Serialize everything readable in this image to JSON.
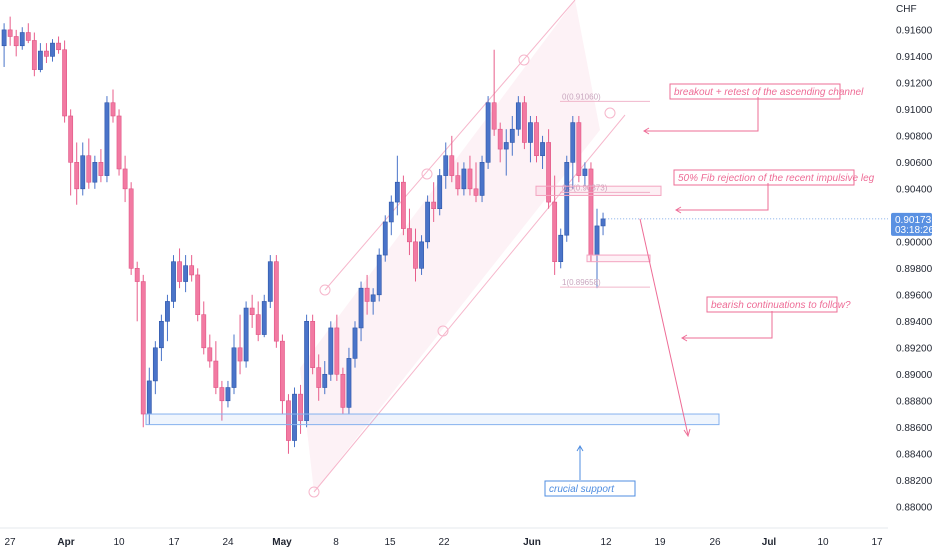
{
  "colors": {
    "bull": "#4a74c9",
    "bear": "#f27aa2",
    "wick_bull": "#4a74c9",
    "wick_bear": "#e85d8a",
    "annotation_pink": "#ee6c96",
    "annotation_blue": "#4f8de0",
    "channel": "#f6b6cb",
    "channel_fill": "#fdf2f6",
    "price_tag": "#5a91e2"
  },
  "axis": {
    "currency": "CHF",
    "price_ticks": [
      "0.91600",
      "0.91400",
      "0.91200",
      "0.91000",
      "0.90800",
      "0.90600",
      "0.90400",
      "0.90000",
      "0.89800",
      "0.89600",
      "0.89400",
      "0.89200",
      "0.89000",
      "0.88800",
      "0.88600",
      "0.88400",
      "0.88200",
      "0.88000"
    ],
    "time_ticks": [
      {
        "label": "27",
        "bold": false
      },
      {
        "label": "Apr",
        "bold": true
      },
      {
        "label": "10",
        "bold": false
      },
      {
        "label": "17",
        "bold": false
      },
      {
        "label": "24",
        "bold": false
      },
      {
        "label": "May",
        "bold": true
      },
      {
        "label": "8",
        "bold": false
      },
      {
        "label": "15",
        "bold": false
      },
      {
        "label": "22",
        "bold": false
      },
      {
        "label": "Jun",
        "bold": true
      },
      {
        "label": "12",
        "bold": false
      },
      {
        "label": "19",
        "bold": false
      },
      {
        "label": "26",
        "bold": false
      },
      {
        "label": "Jul",
        "bold": true
      },
      {
        "label": "10",
        "bold": false
      },
      {
        "label": "17",
        "bold": false
      }
    ]
  },
  "price_tag": {
    "price": "0.90173",
    "countdown": "03:18:26"
  },
  "annotations": {
    "breakout": "breakout + retest of the ascending channel",
    "fib_rejection": "50% Fib rejection of the recent impulsive leg",
    "bearish": "bearish continuations to follow?",
    "support": "crucial support"
  },
  "fib_levels": [
    {
      "label": "0(0.91060)",
      "price": 0.9106
    },
    {
      "label": "0.5(0.90373)",
      "price": 0.90373
    },
    {
      "label": "1(0.89658)",
      "price": 0.89658
    }
  ],
  "chart_data": {
    "type": "candlestick",
    "symbol_currency": "CHF",
    "ylim": [
      0.879,
      0.9175
    ],
    "last_price": 0.90173,
    "support_zone": [
      0.8862,
      0.887
    ],
    "candles": [
      {
        "o": 0.9148,
        "h": 0.9165,
        "l": 0.9132,
        "c": 0.916
      },
      {
        "o": 0.916,
        "h": 0.917,
        "l": 0.9148,
        "c": 0.9155
      },
      {
        "o": 0.9155,
        "h": 0.916,
        "l": 0.914,
        "c": 0.9148
      },
      {
        "o": 0.9148,
        "h": 0.9162,
        "l": 0.9145,
        "c": 0.9158
      },
      {
        "o": 0.9158,
        "h": 0.9165,
        "l": 0.915,
        "c": 0.9152
      },
      {
        "o": 0.9152,
        "h": 0.9158,
        "l": 0.9125,
        "c": 0.913
      },
      {
        "o": 0.913,
        "h": 0.915,
        "l": 0.9128,
        "c": 0.9144
      },
      {
        "o": 0.9144,
        "h": 0.915,
        "l": 0.9135,
        "c": 0.914
      },
      {
        "o": 0.914,
        "h": 0.9153,
        "l": 0.9136,
        "c": 0.915
      },
      {
        "o": 0.915,
        "h": 0.9155,
        "l": 0.9142,
        "c": 0.9145
      },
      {
        "o": 0.9145,
        "h": 0.9152,
        "l": 0.909,
        "c": 0.9095
      },
      {
        "o": 0.9095,
        "h": 0.91,
        "l": 0.9035,
        "c": 0.906
      },
      {
        "o": 0.906,
        "h": 0.9075,
        "l": 0.9028,
        "c": 0.904
      },
      {
        "o": 0.904,
        "h": 0.9075,
        "l": 0.9035,
        "c": 0.9065
      },
      {
        "o": 0.9065,
        "h": 0.9078,
        "l": 0.904,
        "c": 0.9045
      },
      {
        "o": 0.9045,
        "h": 0.9065,
        "l": 0.904,
        "c": 0.906
      },
      {
        "o": 0.906,
        "h": 0.907,
        "l": 0.9045,
        "c": 0.905
      },
      {
        "o": 0.905,
        "h": 0.911,
        "l": 0.9045,
        "c": 0.9105
      },
      {
        "o": 0.9105,
        "h": 0.9115,
        "l": 0.909,
        "c": 0.9095
      },
      {
        "o": 0.9095,
        "h": 0.91,
        "l": 0.905,
        "c": 0.9055
      },
      {
        "o": 0.9055,
        "h": 0.9065,
        "l": 0.903,
        "c": 0.904
      },
      {
        "o": 0.904,
        "h": 0.9045,
        "l": 0.8975,
        "c": 0.898
      },
      {
        "o": 0.898,
        "h": 0.8985,
        "l": 0.894,
        "c": 0.897
      },
      {
        "o": 0.897,
        "h": 0.8975,
        "l": 0.886,
        "c": 0.887
      },
      {
        "o": 0.887,
        "h": 0.8905,
        "l": 0.8862,
        "c": 0.8895
      },
      {
        "o": 0.8895,
        "h": 0.8925,
        "l": 0.8885,
        "c": 0.892
      },
      {
        "o": 0.892,
        "h": 0.8945,
        "l": 0.891,
        "c": 0.894
      },
      {
        "o": 0.894,
        "h": 0.896,
        "l": 0.8925,
        "c": 0.8955
      },
      {
        "o": 0.8955,
        "h": 0.899,
        "l": 0.895,
        "c": 0.8985
      },
      {
        "o": 0.8985,
        "h": 0.8995,
        "l": 0.8965,
        "c": 0.897
      },
      {
        "o": 0.897,
        "h": 0.899,
        "l": 0.8962,
        "c": 0.8982
      },
      {
        "o": 0.8982,
        "h": 0.899,
        "l": 0.897,
        "c": 0.8975
      },
      {
        "o": 0.8975,
        "h": 0.898,
        "l": 0.894,
        "c": 0.8945
      },
      {
        "o": 0.8945,
        "h": 0.8955,
        "l": 0.8915,
        "c": 0.892
      },
      {
        "o": 0.892,
        "h": 0.893,
        "l": 0.8905,
        "c": 0.891
      },
      {
        "o": 0.891,
        "h": 0.8925,
        "l": 0.8885,
        "c": 0.889
      },
      {
        "o": 0.889,
        "h": 0.8895,
        "l": 0.8865,
        "c": 0.888
      },
      {
        "o": 0.888,
        "h": 0.8895,
        "l": 0.8875,
        "c": 0.889
      },
      {
        "o": 0.889,
        "h": 0.893,
        "l": 0.8885,
        "c": 0.892
      },
      {
        "o": 0.892,
        "h": 0.8945,
        "l": 0.89,
        "c": 0.891
      },
      {
        "o": 0.891,
        "h": 0.8955,
        "l": 0.8905,
        "c": 0.895
      },
      {
        "o": 0.895,
        "h": 0.896,
        "l": 0.8935,
        "c": 0.8945
      },
      {
        "o": 0.8945,
        "h": 0.8955,
        "l": 0.8925,
        "c": 0.893
      },
      {
        "o": 0.893,
        "h": 0.896,
        "l": 0.8928,
        "c": 0.8955
      },
      {
        "o": 0.8955,
        "h": 0.899,
        "l": 0.895,
        "c": 0.8985
      },
      {
        "o": 0.8985,
        "h": 0.899,
        "l": 0.892,
        "c": 0.8925
      },
      {
        "o": 0.8925,
        "h": 0.893,
        "l": 0.887,
        "c": 0.888
      },
      {
        "o": 0.888,
        "h": 0.8885,
        "l": 0.884,
        "c": 0.885
      },
      {
        "o": 0.885,
        "h": 0.889,
        "l": 0.8845,
        "c": 0.8885
      },
      {
        "o": 0.8885,
        "h": 0.8892,
        "l": 0.8855,
        "c": 0.8865
      },
      {
        "o": 0.8865,
        "h": 0.8945,
        "l": 0.886,
        "c": 0.894
      },
      {
        "o": 0.894,
        "h": 0.8945,
        "l": 0.89,
        "c": 0.8905
      },
      {
        "o": 0.8905,
        "h": 0.8915,
        "l": 0.888,
        "c": 0.889
      },
      {
        "o": 0.889,
        "h": 0.891,
        "l": 0.8885,
        "c": 0.89
      },
      {
        "o": 0.89,
        "h": 0.894,
        "l": 0.8895,
        "c": 0.8935
      },
      {
        "o": 0.8935,
        "h": 0.8945,
        "l": 0.8895,
        "c": 0.89
      },
      {
        "o": 0.89,
        "h": 0.8905,
        "l": 0.887,
        "c": 0.8875
      },
      {
        "o": 0.8875,
        "h": 0.892,
        "l": 0.887,
        "c": 0.8912
      },
      {
        "o": 0.8912,
        "h": 0.894,
        "l": 0.8905,
        "c": 0.8935
      },
      {
        "o": 0.8935,
        "h": 0.897,
        "l": 0.8925,
        "c": 0.8965
      },
      {
        "o": 0.8965,
        "h": 0.8975,
        "l": 0.8945,
        "c": 0.8955
      },
      {
        "o": 0.8955,
        "h": 0.8965,
        "l": 0.8945,
        "c": 0.896
      },
      {
        "o": 0.896,
        "h": 0.8995,
        "l": 0.8955,
        "c": 0.899
      },
      {
        "o": 0.899,
        "h": 0.902,
        "l": 0.8985,
        "c": 0.9015
      },
      {
        "o": 0.9015,
        "h": 0.9035,
        "l": 0.9005,
        "c": 0.903
      },
      {
        "o": 0.903,
        "h": 0.9065,
        "l": 0.902,
        "c": 0.9045
      },
      {
        "o": 0.9045,
        "h": 0.905,
        "l": 0.9005,
        "c": 0.901
      },
      {
        "o": 0.901,
        "h": 0.9025,
        "l": 0.899,
        "c": 0.9
      },
      {
        "o": 0.9,
        "h": 0.901,
        "l": 0.897,
        "c": 0.898
      },
      {
        "o": 0.898,
        "h": 0.9005,
        "l": 0.8975,
        "c": 0.9
      },
      {
        "o": 0.9,
        "h": 0.9035,
        "l": 0.8995,
        "c": 0.903
      },
      {
        "o": 0.903,
        "h": 0.9045,
        "l": 0.9015,
        "c": 0.9025
      },
      {
        "o": 0.9025,
        "h": 0.9055,
        "l": 0.902,
        "c": 0.905
      },
      {
        "o": 0.905,
        "h": 0.9075,
        "l": 0.904,
        "c": 0.9065
      },
      {
        "o": 0.9065,
        "h": 0.908,
        "l": 0.9045,
        "c": 0.905
      },
      {
        "o": 0.905,
        "h": 0.906,
        "l": 0.9035,
        "c": 0.904
      },
      {
        "o": 0.904,
        "h": 0.906,
        "l": 0.9035,
        "c": 0.9055
      },
      {
        "o": 0.9055,
        "h": 0.9065,
        "l": 0.9035,
        "c": 0.904
      },
      {
        "o": 0.904,
        "h": 0.906,
        "l": 0.903,
        "c": 0.9035
      },
      {
        "o": 0.9035,
        "h": 0.9065,
        "l": 0.903,
        "c": 0.906
      },
      {
        "o": 0.906,
        "h": 0.911,
        "l": 0.9055,
        "c": 0.9105
      },
      {
        "o": 0.9105,
        "h": 0.9145,
        "l": 0.908,
        "c": 0.9085
      },
      {
        "o": 0.9085,
        "h": 0.909,
        "l": 0.906,
        "c": 0.907
      },
      {
        "o": 0.907,
        "h": 0.9085,
        "l": 0.905,
        "c": 0.9075
      },
      {
        "o": 0.9075,
        "h": 0.9095,
        "l": 0.9065,
        "c": 0.9085
      },
      {
        "o": 0.9085,
        "h": 0.911,
        "l": 0.908,
        "c": 0.9105
      },
      {
        "o": 0.9105,
        "h": 0.911,
        "l": 0.907,
        "c": 0.9075
      },
      {
        "o": 0.9075,
        "h": 0.9095,
        "l": 0.906,
        "c": 0.909
      },
      {
        "o": 0.909,
        "h": 0.9095,
        "l": 0.906,
        "c": 0.9065
      },
      {
        "o": 0.9065,
        "h": 0.908,
        "l": 0.9055,
        "c": 0.9075
      },
      {
        "o": 0.9075,
        "h": 0.9085,
        "l": 0.9025,
        "c": 0.903
      },
      {
        "o": 0.903,
        "h": 0.905,
        "l": 0.8975,
        "c": 0.8985
      },
      {
        "o": 0.8985,
        "h": 0.901,
        "l": 0.898,
        "c": 0.9005
      },
      {
        "o": 0.9005,
        "h": 0.9065,
        "l": 0.9,
        "c": 0.906
      },
      {
        "o": 0.906,
        "h": 0.9095,
        "l": 0.904,
        "c": 0.909
      },
      {
        "o": 0.909,
        "h": 0.9095,
        "l": 0.9045,
        "c": 0.905
      },
      {
        "o": 0.905,
        "h": 0.906,
        "l": 0.9042,
        "c": 0.9055
      },
      {
        "o": 0.9055,
        "h": 0.906,
        "l": 0.8985,
        "c": 0.899
      },
      {
        "o": 0.899,
        "h": 0.9025,
        "l": 0.8965,
        "c": 0.9012
      },
      {
        "o": 0.9012,
        "h": 0.9022,
        "l": 0.9005,
        "c": 0.90173
      }
    ]
  }
}
